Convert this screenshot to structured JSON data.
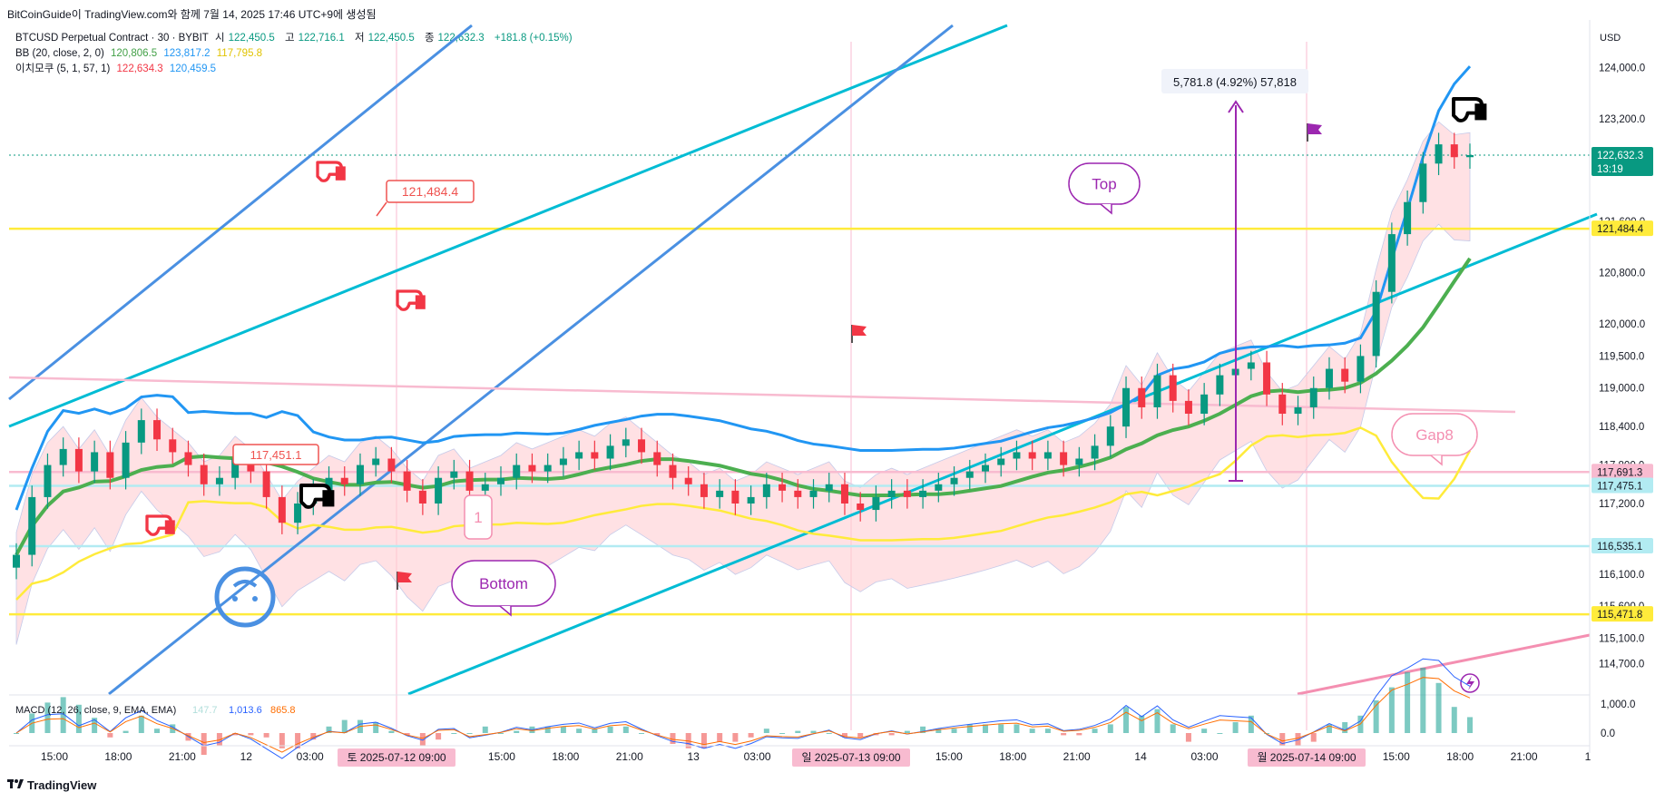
{
  "header": {
    "title": "BitCoinGuide이 TradingView.com와 함께 7월 14, 2025 17:46 UTC+9에 생성됨"
  },
  "legend": {
    "symbol": "BTCUSD Perpetual Contract · 30 · BYBIT",
    "o_label": "시",
    "o": "122,450.5",
    "h_label": "고",
    "h": "122,716.1",
    "l_label": "저",
    "l": "122,450.5",
    "c_label": "종",
    "c": "122,632.3",
    "chg": "+181.8 (+0.15%)",
    "bb_name": "BB (20, close, 2, 0)",
    "bb_basis": "120,806.5",
    "bb_upper": "123,817.2",
    "bb_lower": "117,795.8",
    "ichi_name": "이치모쿠 (5, 1, 57, 1)",
    "ichi_a": "122,634.3",
    "ichi_b": "120,459.5",
    "macd_name": "MACD (12, 26, close, 9, EMA, EMA)",
    "macd_hist": "147.7",
    "macd_line": "1,013.6",
    "macd_signal": "865.8"
  },
  "currency": "USD",
  "footer": {
    "brand": "TradingView"
  },
  "chart_data": {
    "type": "candlestick",
    "symbol": "BTCUSD Perpetual Contract",
    "interval": "30",
    "exchange": "BYBIT",
    "ylim": [
      114300,
      124400
    ],
    "y_ticks": [
      "124,000.0",
      "123,200.0",
      "121,600.0",
      "120,800.0",
      "120,000.0",
      "119,500.0",
      "119,000.0",
      "118,400.0",
      "117,800.0",
      "117,200.0",
      "116,600.0",
      "116,100.0",
      "115,600.0",
      "115,100.0",
      "114,700.0"
    ],
    "x_ticks": [
      "15:00",
      "18:00",
      "21:00",
      "12",
      "03:00",
      "06:00",
      "09:00",
      "15:00",
      "18:00",
      "21:00",
      "13",
      "03:00",
      "06:00",
      "09:00",
      "15:00",
      "18:00",
      "21:00",
      "14",
      "03:00",
      "06:00",
      "09:00",
      "15:00",
      "18:00",
      "21:00",
      "1"
    ],
    "x_highlight_labels": [
      "토 2025-07-12  09:00",
      "일 2025-07-13  09:00",
      "월 2025-07-14  09:00"
    ],
    "price_badges": [
      {
        "value": "122,632.3",
        "sub": "13:19",
        "color": "#089981"
      },
      {
        "value": "121,484.4",
        "color": "#ffeb3b"
      },
      {
        "value": "117,691.3",
        "color": "#f8bbd0"
      },
      {
        "value": "117,475.1",
        "color": "#b2ebf2"
      },
      {
        "value": "116,535.1",
        "color": "#b2ebf2"
      },
      {
        "value": "115,471.8",
        "color": "#ffeb3b"
      }
    ],
    "horizontal_lines": [
      {
        "value": 121484.4,
        "color": "#ffeb3b"
      },
      {
        "value": 117691.3,
        "color": "#f8bbd0"
      },
      {
        "value": 117475.1,
        "color": "#b2ebf2"
      },
      {
        "value": 116535.1,
        "color": "#b2ebf2"
      },
      {
        "value": 115471.8,
        "color": "#ffeb3b"
      }
    ],
    "closes": [
      116400,
      117300,
      117800,
      118050,
      117700,
      118000,
      117600,
      118150,
      118500,
      118200,
      118000,
      117800,
      117500,
      117600,
      117900,
      117700,
      117300,
      116900,
      117200,
      117400,
      117600,
      117500,
      117800,
      117900,
      117700,
      117400,
      117200,
      117600,
      117700,
      117400,
      117500,
      117600,
      117800,
      117700,
      117800,
      117900,
      118000,
      117900,
      118100,
      118200,
      118000,
      117800,
      117600,
      117500,
      117300,
      117400,
      117200,
      117300,
      117500,
      117400,
      117300,
      117400,
      117500,
      117200,
      117100,
      117300,
      117400,
      117300,
      117400,
      117500,
      117600,
      117700,
      117800,
      117900,
      118000,
      117900,
      118000,
      117800,
      117900,
      118100,
      118400,
      119000,
      118700,
      119200,
      118800,
      118600,
      118900,
      119200,
      119300,
      119400,
      118900,
      118600,
      118700,
      119000,
      119300,
      119100,
      119500,
      120500,
      121400,
      121900,
      122500,
      122800,
      122600,
      122632
    ],
    "annotations": {
      "measure": "5,781.8 (4.92%) 57,818",
      "price_label": "121,484.4",
      "callouts": [
        "Top",
        "Bottom",
        "Gap8",
        "1"
      ],
      "hidden_label": "117,451.1"
    },
    "macd": {
      "hist": 147.7,
      "macd": 1013.6,
      "signal": 865.8,
      "ticks": [
        "1,000.0",
        "0.0"
      ]
    },
    "colors": {
      "up": "#089981",
      "down": "#f23645",
      "bb": "#2196f3",
      "bb_basis": "#4caf50",
      "ichi_lead": "#ffeb3b",
      "cloud": "#ffcdd2",
      "trend_cyan": "#00bcd4",
      "trend_blue": "#4a90e2"
    }
  }
}
